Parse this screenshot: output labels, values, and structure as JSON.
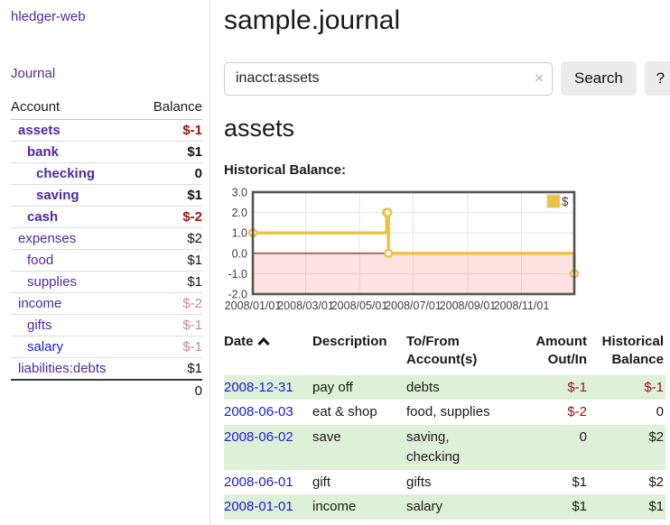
{
  "sidebar": {
    "app_title": "hledger-web",
    "nav": [
      {
        "label": "Journal"
      }
    ],
    "accounts": {
      "header_account": "Account",
      "header_balance": "Balance",
      "rows": [
        {
          "name": "assets",
          "depth": 1,
          "bold": true,
          "balance": "$-1",
          "balance_style": "neg-strong"
        },
        {
          "name": "bank",
          "depth": 2,
          "bold": true,
          "balance": "$1",
          "balance_style": "strong"
        },
        {
          "name": "checking",
          "depth": 3,
          "bold": true,
          "balance": "0",
          "balance_style": "strong"
        },
        {
          "name": "saving",
          "depth": 3,
          "bold": true,
          "balance": "$1",
          "balance_style": "strong"
        },
        {
          "name": "cash",
          "depth": 2,
          "bold": true,
          "balance": "$-2",
          "balance_style": "neg-strong"
        },
        {
          "name": "expenses",
          "depth": 1,
          "bold": false,
          "balance": "$2",
          "balance_style": "plain"
        },
        {
          "name": "food",
          "depth": 2,
          "bold": false,
          "balance": "$1",
          "balance_style": "plain"
        },
        {
          "name": "supplies",
          "depth": 2,
          "bold": false,
          "balance": "$1",
          "balance_style": "plain"
        },
        {
          "name": "income",
          "depth": 1,
          "bold": false,
          "balance": "$-2",
          "balance_style": "neg-soft"
        },
        {
          "name": "gifts",
          "depth": 2,
          "bold": false,
          "balance": "$-1",
          "balance_style": "neg-soft"
        },
        {
          "name": "salary",
          "depth": 2,
          "bold": false,
          "balance": "$-1",
          "balance_style": "neg-soft",
          "link_color": "blue"
        },
        {
          "name": "liabilities:debts",
          "depth": 1,
          "bold": false,
          "balance": "$1",
          "balance_style": "plain"
        }
      ],
      "total": "0"
    }
  },
  "main": {
    "title": "sample.journal",
    "account_heading": "assets",
    "chart_label": "Historical Balance:"
  },
  "search": {
    "value": "inacct:assets",
    "button_label": "Search",
    "help_label": "?",
    "clear_icon": "×"
  },
  "chart_data": {
    "type": "line",
    "title": "Historical Balance",
    "legend": [
      {
        "label": "$",
        "color": "#edc240"
      }
    ],
    "legend_position": "top-right",
    "grid": true,
    "step": true,
    "ylim": [
      -2,
      3
    ],
    "y_ticks": [
      3.0,
      2.0,
      1.0,
      0.0,
      -1.0,
      -2.0
    ],
    "x_range_days": [
      0,
      365
    ],
    "x_ticks": [
      "2008/01/01",
      "2008/03/01",
      "2008/05/01",
      "2008/07/01",
      "2008/09/01",
      "2008/11/01"
    ],
    "x_tick_days": [
      0,
      60,
      121,
      182,
      244,
      305
    ],
    "series": [
      {
        "name": "$",
        "points": [
          {
            "date": "2008-01-01",
            "day": 0,
            "value": 1
          },
          {
            "date": "2008-06-01",
            "day": 152,
            "value": 2
          },
          {
            "date": "2008-06-02",
            "day": 153,
            "value": 2
          },
          {
            "date": "2008-06-03",
            "day": 154,
            "value": 0
          },
          {
            "date": "2008-12-31",
            "day": 365,
            "value": -1
          }
        ]
      }
    ],
    "negative_region_shaded": true,
    "zero_line": true
  },
  "register": {
    "headers": {
      "date": "Date",
      "description": "Description",
      "accounts": "To/From Account(s)",
      "amount": "Amount Out/In",
      "balance": "Historical Balance"
    },
    "rows": [
      {
        "date": "2008-12-31",
        "description": "pay off",
        "accounts": "debts",
        "amount": "$-1",
        "amount_style": "neg",
        "balance": "$-1",
        "balance_style": "neg"
      },
      {
        "date": "2008-06-03",
        "description": "eat & shop",
        "accounts": "food, supplies",
        "amount": "$-2",
        "amount_style": "neg",
        "balance": "0",
        "balance_style": "plain"
      },
      {
        "date": "2008-06-02",
        "description": "save",
        "accounts": "saving, checking",
        "amount": "0",
        "amount_style": "plain",
        "balance": "$2",
        "balance_style": "plain"
      },
      {
        "date": "2008-06-01",
        "description": "gift",
        "accounts": "gifts",
        "amount": "$1",
        "amount_style": "plain",
        "balance": "$2",
        "balance_style": "plain"
      },
      {
        "date": "2008-01-01",
        "description": "income",
        "accounts": "salary",
        "amount": "$1",
        "amount_style": "plain",
        "balance": "$1",
        "balance_style": "plain"
      }
    ]
  },
  "colors": {
    "purple_link": "#5128a0",
    "blue_link": "#1a1add",
    "negative_strong": "#a01212",
    "negative_soft": "#c78b8b",
    "row_stripe_green": "#dff0d8",
    "chart_line": "#edc240",
    "chart_negative_fill": "#fbdcdc",
    "chart_zero_line": "#8b0000",
    "chart_border": "#545454"
  }
}
